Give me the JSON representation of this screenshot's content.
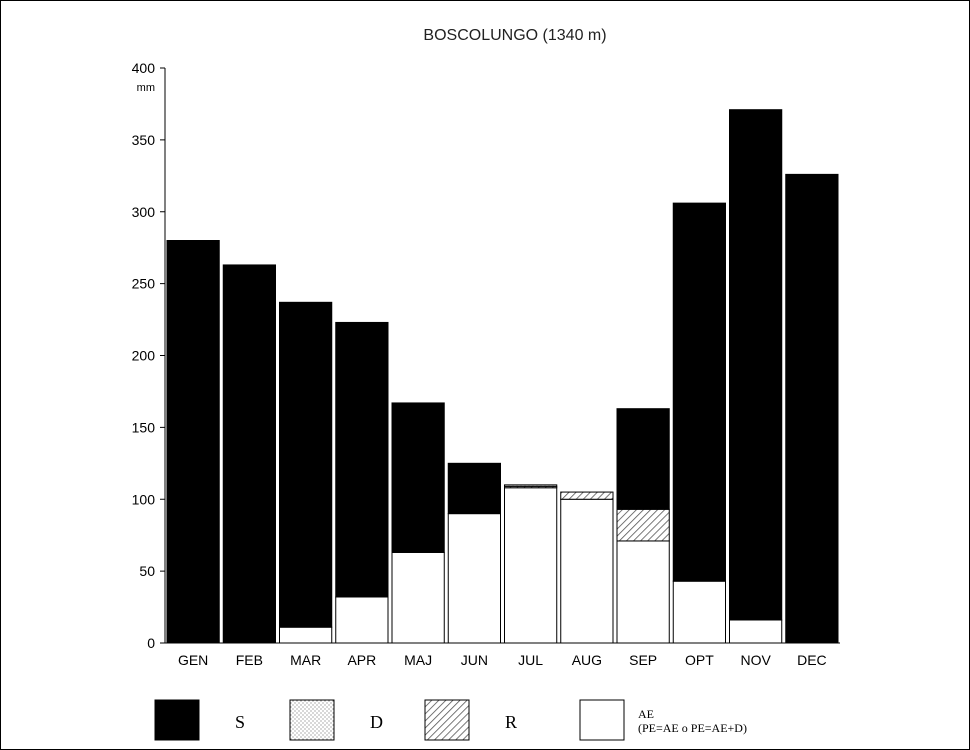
{
  "chart_data": {
    "type": "bar",
    "stacked": true,
    "title": "BOSCOLUNGO (1340 m)",
    "ylabel": "mm",
    "ylim": [
      0,
      400
    ],
    "yticks": [
      0,
      50,
      100,
      150,
      200,
      250,
      300,
      350,
      400
    ],
    "categories": [
      "GEN",
      "FEB",
      "MAR",
      "APR",
      "MAJ",
      "JUN",
      "JUL",
      "AUG",
      "SEP",
      "OPT",
      "NOV",
      "DEC"
    ],
    "series": [
      {
        "name": "AE",
        "color": "#ffffff",
        "pattern": "none",
        "values": [
          0,
          0,
          11,
          32,
          63,
          90,
          108,
          100,
          71,
          43,
          16,
          0
        ]
      },
      {
        "name": "R",
        "color": "#ffffff",
        "pattern": "hatch",
        "values": [
          0,
          0,
          0,
          0,
          0,
          0,
          1,
          5,
          22,
          0,
          0,
          0
        ]
      },
      {
        "name": "D",
        "color": "#ffffff",
        "pattern": "dots",
        "values": [
          0,
          0,
          0,
          0,
          0,
          0,
          1,
          0,
          0,
          0,
          0,
          0
        ]
      },
      {
        "name": "S",
        "color": "#000000",
        "pattern": "solid",
        "values": [
          280,
          263,
          226,
          191,
          104,
          35,
          0,
          0,
          70,
          263,
          355,
          326
        ]
      }
    ],
    "legend": {
      "placement": "bottom",
      "items": [
        {
          "label": "S",
          "pattern": "solid"
        },
        {
          "label": "D",
          "pattern": "dots"
        },
        {
          "label": "R",
          "pattern": "hatch"
        },
        {
          "label": "AE",
          "pattern": "none",
          "sublabel": "(PE=AE o PE=AE+D)"
        }
      ]
    },
    "grid": false
  }
}
